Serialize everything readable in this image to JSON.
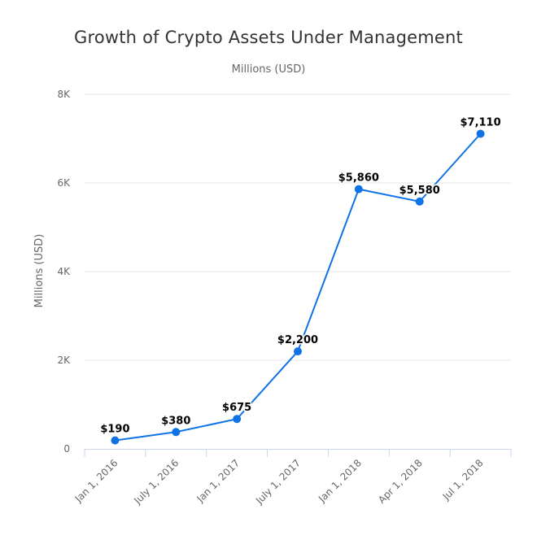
{
  "chart_data": {
    "type": "line",
    "title": "Growth of Crypto Assets Under Management",
    "subtitle": "Millions (USD)",
    "ylabel": "Millions (USD)",
    "xlabel": "",
    "categories": [
      "Jan 1, 2016",
      "July 1, 2016",
      "Jan 1, 2017",
      "July 1, 2017",
      "Jan 1, 2018",
      "Apr 1, 2018",
      "Jul 1, 2018"
    ],
    "values": [
      190,
      380,
      675,
      2200,
      5860,
      5580,
      7110
    ],
    "data_labels": [
      "$190",
      "$380",
      "$675",
      "$2,200",
      "$5,860",
      "$5,580",
      "$7,110"
    ],
    "ylim": [
      0,
      8000
    ],
    "yticks": [
      0,
      2000,
      4000,
      6000,
      8000
    ],
    "ytick_labels": [
      "0",
      "2K",
      "4K",
      "6K",
      "8K"
    ],
    "grid": true,
    "legend": "none",
    "colors": {
      "line": "#0f73e6",
      "grid": "#e6e6e6",
      "axis": "#ccd6eb"
    }
  }
}
